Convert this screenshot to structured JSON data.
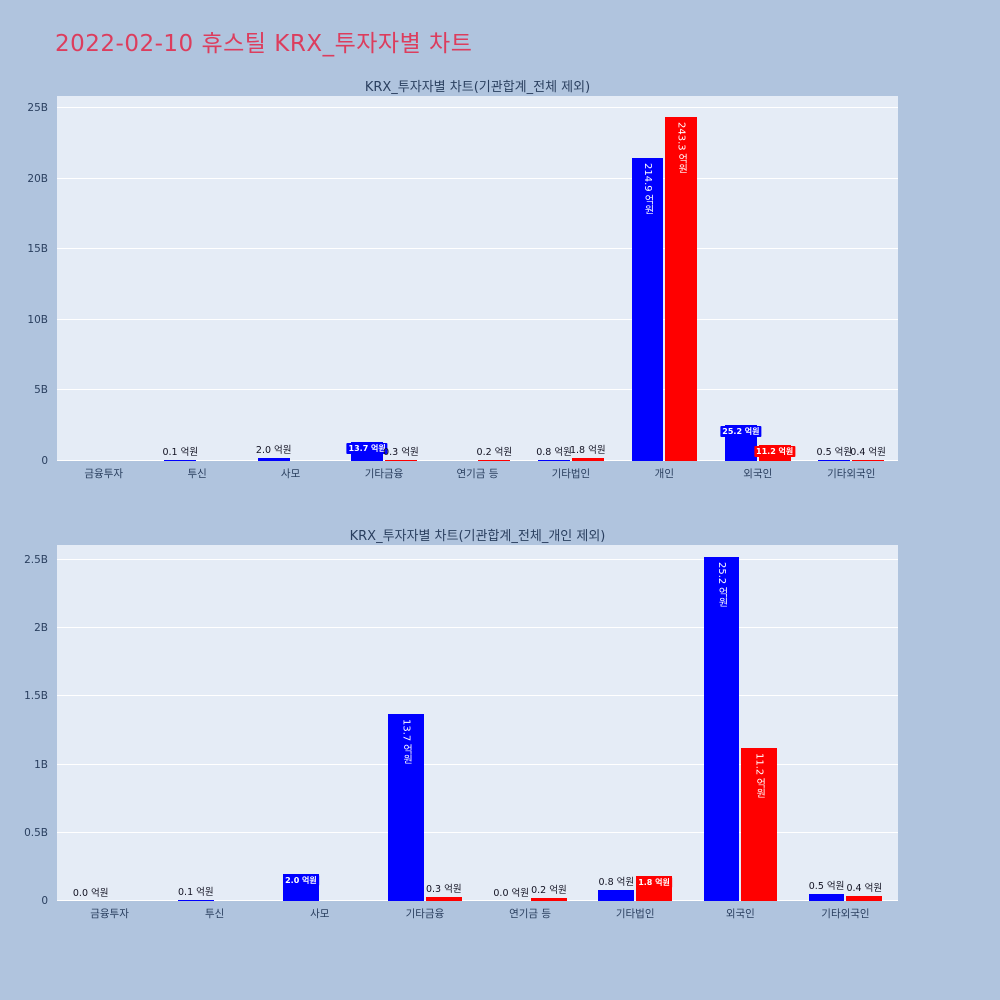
{
  "page": {
    "title": "2022-02-10 휴스틸 KRX_투자자별 차트"
  },
  "colors": {
    "background": "#b0c4de",
    "plot_background": "#e5ecf6",
    "gridline": "#ffffff",
    "title_accent": "#dc3d5d",
    "axis_text": "#2a3f5f",
    "bar_blue": "#0000ff",
    "bar_red": "#ff0000",
    "label_outside": "#121222",
    "label_inside": "#ffffff"
  },
  "chart_data": [
    {
      "type": "bar",
      "title": "KRX_투자자별 차트(기관합계_전체 제외)",
      "unit": "억원",
      "ylim": [
        "0",
        "25B"
      ],
      "yticks": [
        "0",
        "5B",
        "10B",
        "15B",
        "20B",
        "25B"
      ],
      "ymax_billions": 25,
      "grid": true,
      "legend": "none",
      "categories": [
        "금융투자",
        "투신",
        "사모",
        "기타금융",
        "연기금 등",
        "기타법인",
        "개인",
        "외국인",
        "기타외국인"
      ],
      "series": [
        {
          "name": "blue",
          "color_key": "blue",
          "values_eokwon": [
            0,
            0.1,
            2.0,
            13.7,
            0,
            0.8,
            214.9,
            25.2,
            0.5
          ],
          "labels": [
            "",
            "0.1 억원",
            "2.0 억원",
            "13.7 억원",
            "",
            "0.8 억원",
            "214.9 억원",
            "25.2 억원",
            "0.5 억원"
          ]
        },
        {
          "name": "red",
          "color_key": "red",
          "values_eokwon": [
            0,
            0,
            0,
            0.3,
            0.2,
            1.8,
            243.3,
            11.2,
            0.4
          ],
          "labels": [
            "",
            "",
            "",
            "0.3 억원",
            "0.2 억원",
            "1.8 억원",
            "243.3 억원",
            "11.2 억원",
            "0.4 억원"
          ]
        }
      ]
    },
    {
      "type": "bar",
      "title": "KRX_투자자별 차트(기관합계_전체_개인 제외)",
      "unit": "억원",
      "ylim": [
        "0",
        "2.5B"
      ],
      "yticks": [
        "0",
        "0.5B",
        "1B",
        "1.5B",
        "2B",
        "2.5B"
      ],
      "ymax_billions": 2.5,
      "grid": true,
      "legend": "none",
      "categories": [
        "금융투자",
        "투신",
        "사모",
        "기타금융",
        "연기금 등",
        "기타법인",
        "외국인",
        "기타외국인"
      ],
      "series": [
        {
          "name": "blue",
          "color_key": "blue",
          "values_eokwon": [
            0.0,
            0.1,
            2.0,
            13.7,
            0.0,
            0.8,
            25.2,
            0.5
          ],
          "labels": [
            "0.0 억원",
            "0.1 억원",
            "2.0 억원",
            "13.7 억원",
            "0.0 억원",
            "0.8 억원",
            "25.2 억원",
            "0.5 억원"
          ]
        },
        {
          "name": "red",
          "color_key": "red",
          "values_eokwon": [
            0,
            0,
            0,
            0.3,
            0.2,
            1.8,
            11.2,
            0.4
          ],
          "labels": [
            "",
            "",
            "",
            "0.3 억원",
            "0.2 억원",
            "1.8 억원",
            "11.2 억원",
            "0.4 억원"
          ]
        }
      ]
    }
  ]
}
